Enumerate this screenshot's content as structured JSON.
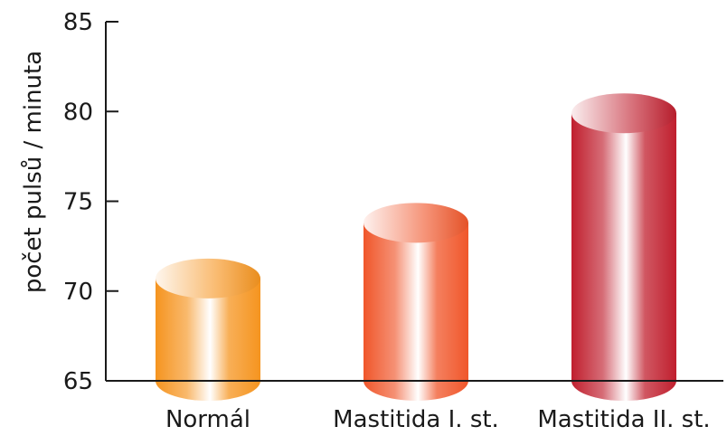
{
  "chart_data": {
    "type": "bar",
    "categories": [
      "Normál",
      "Mastitida I. st.",
      "Mastitida II. st."
    ],
    "values": [
      70.7,
      73.8,
      79.9
    ],
    "ylabel": "počet pulsů / minuta",
    "xlabel": "",
    "ylim": [
      65,
      85
    ],
    "yticks": [
      "65",
      "70",
      "75",
      "80",
      "85"
    ],
    "grid": false,
    "legend": "none",
    "style": "3d-cylinder",
    "colors": [
      "#f5941f",
      "#f0562a",
      "#c01f2e"
    ]
  }
}
